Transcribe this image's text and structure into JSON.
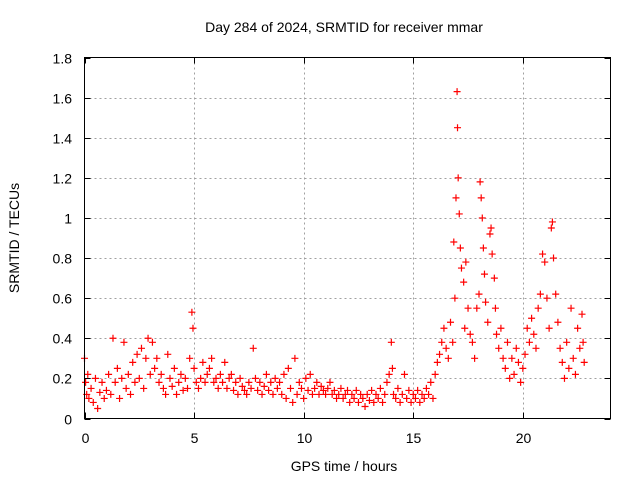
{
  "chart_data": {
    "type": "scatter",
    "title": "Day 284 of 2024, SRMTID for receiver mmar",
    "xlabel": "GPS time / hours",
    "ylabel": "SRMTID / TECUs",
    "xlim": [
      0,
      24
    ],
    "ylim": [
      0,
      1.8
    ],
    "xticks": [
      0,
      5,
      10,
      15,
      20
    ],
    "yticks": [
      0,
      0.2,
      0.4,
      0.6,
      0.8,
      1,
      1.2,
      1.4,
      1.6,
      1.8
    ],
    "xtick_labels": [
      "0",
      "5",
      "10",
      "15",
      "20"
    ],
    "ytick_labels": [
      "0",
      "0.2",
      "0.4",
      "0.6",
      "0.8",
      "1",
      "1.2",
      "1.4",
      "1.6",
      "1.8"
    ],
    "grid": true,
    "marker": "+",
    "series": [
      {
        "name": "SRMTID",
        "color": "#ff0000",
        "points": [
          [
            0.0,
            0.3
          ],
          [
            0.05,
            0.18
          ],
          [
            0.1,
            0.12
          ],
          [
            0.15,
            0.22
          ],
          [
            0.2,
            0.1
          ],
          [
            0.3,
            0.15
          ],
          [
            0.4,
            0.08
          ],
          [
            0.5,
            0.2
          ],
          [
            0.6,
            0.05
          ],
          [
            0.7,
            0.13
          ],
          [
            0.8,
            0.18
          ],
          [
            0.9,
            0.1
          ],
          [
            1.0,
            0.14
          ],
          [
            1.1,
            0.22
          ],
          [
            1.2,
            0.12
          ],
          [
            1.3,
            0.4
          ],
          [
            1.4,
            0.18
          ],
          [
            1.5,
            0.25
          ],
          [
            1.6,
            0.1
          ],
          [
            1.7,
            0.2
          ],
          [
            1.8,
            0.38
          ],
          [
            1.9,
            0.15
          ],
          [
            2.0,
            0.22
          ],
          [
            2.1,
            0.12
          ],
          [
            2.2,
            0.28
          ],
          [
            2.3,
            0.18
          ],
          [
            2.4,
            0.32
          ],
          [
            2.5,
            0.2
          ],
          [
            2.6,
            0.35
          ],
          [
            2.7,
            0.15
          ],
          [
            2.8,
            0.3
          ],
          [
            2.9,
            0.4
          ],
          [
            3.0,
            0.22
          ],
          [
            3.1,
            0.38
          ],
          [
            3.2,
            0.25
          ],
          [
            3.3,
            0.3
          ],
          [
            3.4,
            0.18
          ],
          [
            3.5,
            0.22
          ],
          [
            3.6,
            0.15
          ],
          [
            3.7,
            0.12
          ],
          [
            3.8,
            0.32
          ],
          [
            3.9,
            0.2
          ],
          [
            4.0,
            0.16
          ],
          [
            4.1,
            0.25
          ],
          [
            4.2,
            0.12
          ],
          [
            4.3,
            0.18
          ],
          [
            4.4,
            0.22
          ],
          [
            4.5,
            0.14
          ],
          [
            4.6,
            0.2
          ],
          [
            4.7,
            0.15
          ],
          [
            4.8,
            0.3
          ],
          [
            4.9,
            0.53
          ],
          [
            4.95,
            0.45
          ],
          [
            5.0,
            0.25
          ],
          [
            5.1,
            0.18
          ],
          [
            5.2,
            0.15
          ],
          [
            5.3,
            0.2
          ],
          [
            5.4,
            0.28
          ],
          [
            5.5,
            0.18
          ],
          [
            5.6,
            0.22
          ],
          [
            5.7,
            0.25
          ],
          [
            5.8,
            0.3
          ],
          [
            5.9,
            0.18
          ],
          [
            6.0,
            0.2
          ],
          [
            6.1,
            0.15
          ],
          [
            6.2,
            0.22
          ],
          [
            6.3,
            0.18
          ],
          [
            6.4,
            0.28
          ],
          [
            6.5,
            0.15
          ],
          [
            6.6,
            0.2
          ],
          [
            6.7,
            0.22
          ],
          [
            6.8,
            0.14
          ],
          [
            6.9,
            0.18
          ],
          [
            7.0,
            0.12
          ],
          [
            7.1,
            0.2
          ],
          [
            7.2,
            0.16
          ],
          [
            7.3,
            0.14
          ],
          [
            7.4,
            0.12
          ],
          [
            7.5,
            0.18
          ],
          [
            7.6,
            0.15
          ],
          [
            7.7,
            0.35
          ],
          [
            7.8,
            0.2
          ],
          [
            7.9,
            0.14
          ],
          [
            8.0,
            0.18
          ],
          [
            8.1,
            0.12
          ],
          [
            8.2,
            0.16
          ],
          [
            8.3,
            0.22
          ],
          [
            8.4,
            0.14
          ],
          [
            8.5,
            0.18
          ],
          [
            8.6,
            0.12
          ],
          [
            8.7,
            0.2
          ],
          [
            8.8,
            0.15
          ],
          [
            8.9,
            0.18
          ],
          [
            9.0,
            0.12
          ],
          [
            9.1,
            0.22
          ],
          [
            9.2,
            0.1
          ],
          [
            9.3,
            0.25
          ],
          [
            9.4,
            0.15
          ],
          [
            9.5,
            0.08
          ],
          [
            9.6,
            0.3
          ],
          [
            9.7,
            0.12
          ],
          [
            9.8,
            0.18
          ],
          [
            9.9,
            0.15
          ],
          [
            10.0,
            0.1
          ],
          [
            10.1,
            0.2
          ],
          [
            10.2,
            0.14
          ],
          [
            10.3,
            0.22
          ],
          [
            10.4,
            0.12
          ],
          [
            10.5,
            0.15
          ],
          [
            10.6,
            0.18
          ],
          [
            10.7,
            0.12
          ],
          [
            10.8,
            0.16
          ],
          [
            10.9,
            0.14
          ],
          [
            11.0,
            0.12
          ],
          [
            11.1,
            0.15
          ],
          [
            11.2,
            0.18
          ],
          [
            11.3,
            0.12
          ],
          [
            11.4,
            0.14
          ],
          [
            11.5,
            0.1
          ],
          [
            11.6,
            0.12
          ],
          [
            11.7,
            0.15
          ],
          [
            11.8,
            0.1
          ],
          [
            11.9,
            0.12
          ],
          [
            12.0,
            0.14
          ],
          [
            12.1,
            0.08
          ],
          [
            12.2,
            0.12
          ],
          [
            12.3,
            0.1
          ],
          [
            12.4,
            0.14
          ],
          [
            12.5,
            0.08
          ],
          [
            12.6,
            0.12
          ],
          [
            12.7,
            0.1
          ],
          [
            12.8,
            0.06
          ],
          [
            12.9,
            0.12
          ],
          [
            13.0,
            0.09
          ],
          [
            13.1,
            0.14
          ],
          [
            13.2,
            0.08
          ],
          [
            13.3,
            0.12
          ],
          [
            13.4,
            0.1
          ],
          [
            13.5,
            0.15
          ],
          [
            13.6,
            0.08
          ],
          [
            13.7,
            0.12
          ],
          [
            13.8,
            0.18
          ],
          [
            13.9,
            0.22
          ],
          [
            14.0,
            0.38
          ],
          [
            14.05,
            0.25
          ],
          [
            14.1,
            0.12
          ],
          [
            14.2,
            0.1
          ],
          [
            14.3,
            0.15
          ],
          [
            14.4,
            0.08
          ],
          [
            14.5,
            0.12
          ],
          [
            14.6,
            0.22
          ],
          [
            14.7,
            0.1
          ],
          [
            14.8,
            0.14
          ],
          [
            14.9,
            0.08
          ],
          [
            15.0,
            0.12
          ],
          [
            15.1,
            0.1
          ],
          [
            15.2,
            0.14
          ],
          [
            15.3,
            0.08
          ],
          [
            15.4,
            0.12
          ],
          [
            15.5,
            0.1
          ],
          [
            15.6,
            0.15
          ],
          [
            15.7,
            0.12
          ],
          [
            15.8,
            0.18
          ],
          [
            15.9,
            0.1
          ],
          [
            16.0,
            0.22
          ],
          [
            16.1,
            0.28
          ],
          [
            16.2,
            0.32
          ],
          [
            16.3,
            0.38
          ],
          [
            16.4,
            0.45
          ],
          [
            16.5,
            0.35
          ],
          [
            16.6,
            0.3
          ],
          [
            16.7,
            0.48
          ],
          [
            16.8,
            0.38
          ],
          [
            16.85,
            0.88
          ],
          [
            16.9,
            0.6
          ],
          [
            16.95,
            1.1
          ],
          [
            17.0,
            1.63
          ],
          [
            17.02,
            1.45
          ],
          [
            17.05,
            1.2
          ],
          [
            17.1,
            1.02
          ],
          [
            17.15,
            0.85
          ],
          [
            17.2,
            0.75
          ],
          [
            17.3,
            0.68
          ],
          [
            17.35,
            0.45
          ],
          [
            17.4,
            0.78
          ],
          [
            17.5,
            0.55
          ],
          [
            17.6,
            0.42
          ],
          [
            17.7,
            0.38
          ],
          [
            17.8,
            0.3
          ],
          [
            17.9,
            0.55
          ],
          [
            18.0,
            0.62
          ],
          [
            18.05,
            1.18
          ],
          [
            18.1,
            1.1
          ],
          [
            18.15,
            1.0
          ],
          [
            18.2,
            0.85
          ],
          [
            18.25,
            0.72
          ],
          [
            18.3,
            0.58
          ],
          [
            18.4,
            0.48
          ],
          [
            18.5,
            0.92
          ],
          [
            18.55,
            0.95
          ],
          [
            18.6,
            0.82
          ],
          [
            18.7,
            0.7
          ],
          [
            18.75,
            0.55
          ],
          [
            18.8,
            0.42
          ],
          [
            18.9,
            0.35
          ],
          [
            19.0,
            0.45
          ],
          [
            19.1,
            0.3
          ],
          [
            19.2,
            0.25
          ],
          [
            19.3,
            0.38
          ],
          [
            19.4,
            0.2
          ],
          [
            19.5,
            0.3
          ],
          [
            19.6,
            0.22
          ],
          [
            19.7,
            0.35
          ],
          [
            19.8,
            0.28
          ],
          [
            19.9,
            0.18
          ],
          [
            20.0,
            0.25
          ],
          [
            20.1,
            0.32
          ],
          [
            20.2,
            0.45
          ],
          [
            20.3,
            0.38
          ],
          [
            20.4,
            0.5
          ],
          [
            20.5,
            0.42
          ],
          [
            20.6,
            0.35
          ],
          [
            20.7,
            0.55
          ],
          [
            20.8,
            0.62
          ],
          [
            20.9,
            0.82
          ],
          [
            21.0,
            0.78
          ],
          [
            21.1,
            0.6
          ],
          [
            21.2,
            0.45
          ],
          [
            21.3,
            0.95
          ],
          [
            21.35,
            0.98
          ],
          [
            21.4,
            0.8
          ],
          [
            21.5,
            0.62
          ],
          [
            21.6,
            0.48
          ],
          [
            21.7,
            0.35
          ],
          [
            21.8,
            0.28
          ],
          [
            21.9,
            0.2
          ],
          [
            22.0,
            0.38
          ],
          [
            22.1,
            0.25
          ],
          [
            22.2,
            0.55
          ],
          [
            22.3,
            0.3
          ],
          [
            22.4,
            0.22
          ],
          [
            22.5,
            0.45
          ],
          [
            22.6,
            0.35
          ],
          [
            22.7,
            0.52
          ],
          [
            22.75,
            0.38
          ],
          [
            22.8,
            0.28
          ]
        ]
      }
    ]
  }
}
